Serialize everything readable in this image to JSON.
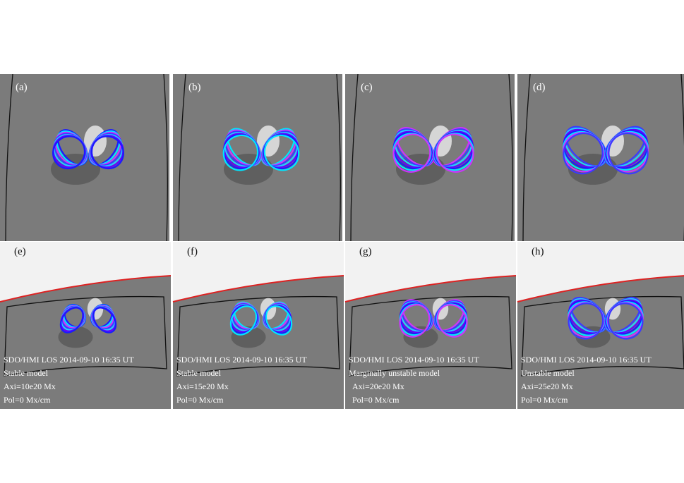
{
  "top_panels": [
    {
      "label": "(a)"
    },
    {
      "label": "(b)"
    },
    {
      "label": "(c)"
    },
    {
      "label": "(d)"
    }
  ],
  "bottom_panels": [
    {
      "label": "(e)",
      "lines": [
        "SDO/HMI LOS 2014-09-10 16:35 UT",
        "Stable model",
        "Axi=10e20 Mx",
        "Pol=0 Mx/cm"
      ]
    },
    {
      "label": "(f)",
      "lines": [
        "SDO/HMI LOS 2014-09-10 16:35 UT",
        "Stable model",
        "Axi=15e20 Mx",
        "Pol=0 Mx/cm"
      ]
    },
    {
      "label": "(g)",
      "lines": [
        "SDO/HMI LOS 2014-09-10 16:35 UT",
        "Marginally unstable model",
        "Axi=20e20 Mx",
        "Pol=0 Mx/cm"
      ]
    },
    {
      "label": "(h)",
      "lines": [
        "SDO/HMI LOS 2014-09-10 16:35 UT",
        "Unstable model",
        "Axi=25e20 Mx",
        "Pol=0 Mx/cm"
      ]
    }
  ]
}
